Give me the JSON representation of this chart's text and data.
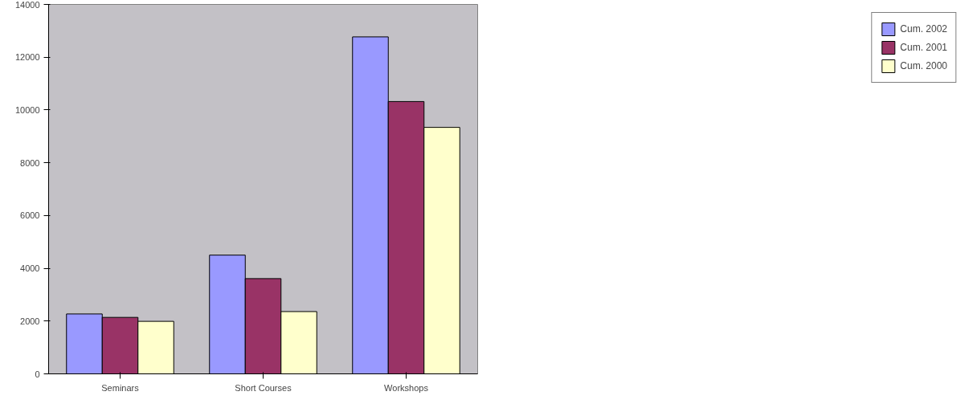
{
  "chart_data": {
    "type": "bar",
    "categories": [
      "Seminars",
      "Short Courses",
      "Workshops"
    ],
    "series": [
      {
        "name": "Cum. 2002",
        "color": "#9999ff",
        "values": [
          2270,
          4500,
          12770
        ]
      },
      {
        "name": "Cum. 2001",
        "color": "#993366",
        "values": [
          2140,
          3610,
          10320
        ]
      },
      {
        "name": "Cum. 2000",
        "color": "#ffffcc",
        "values": [
          1990,
          2360,
          9340
        ]
      }
    ],
    "ylim": [
      0,
      14000
    ],
    "yticks": [
      0,
      2000,
      4000,
      6000,
      8000,
      10000,
      12000,
      14000
    ],
    "grid": false,
    "legend": "right"
  }
}
